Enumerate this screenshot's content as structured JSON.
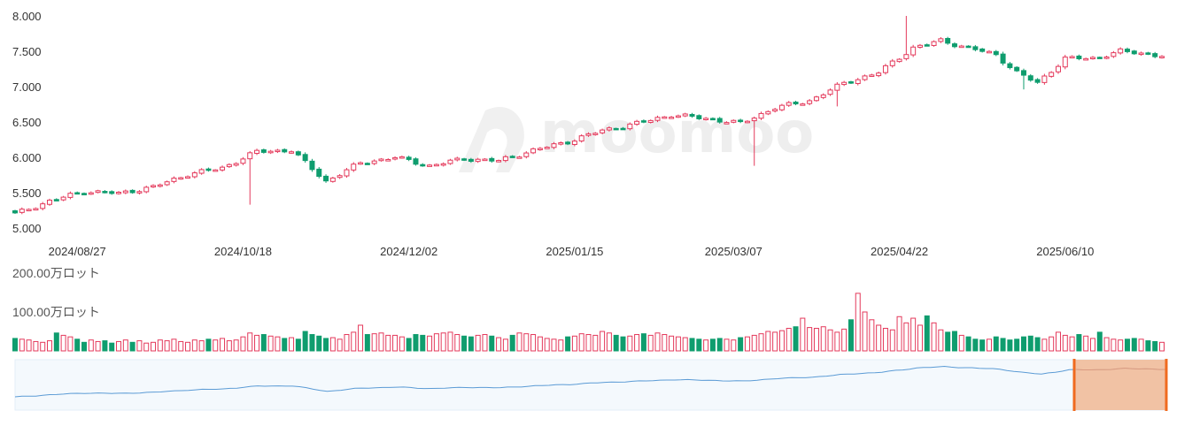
{
  "chart_data": [
    {
      "type": "candlestick",
      "y_ticks": [
        "8.000",
        "7.500",
        "7.000",
        "6.500",
        "6.000",
        "5.500",
        "5.000"
      ],
      "y_tick_values": [
        8000,
        7500,
        7000,
        6500,
        6000,
        5500,
        5000
      ],
      "ylim": [
        5000,
        8000
      ],
      "x_ticks": [
        "2024/08/27",
        "2024/10/18",
        "2024/12/02",
        "2025/01/15",
        "2025/03/07",
        "2025/04/22",
        "2025/06/10"
      ],
      "x_tick_positions": [
        9,
        33,
        57,
        81,
        104,
        128,
        152
      ],
      "up_color": "#e4395b",
      "down_color": "#0f9d6e",
      "watermark": "moomoo",
      "grid": false,
      "anchors": [
        [
          0,
          5200
        ],
        [
          5,
          5380
        ],
        [
          10,
          5520
        ],
        [
          15,
          5490
        ],
        [
          20,
          5580
        ],
        [
          25,
          5760
        ],
        [
          30,
          5850
        ],
        [
          35,
          6080
        ],
        [
          40,
          6100
        ],
        [
          45,
          5660
        ],
        [
          50,
          5920
        ],
        [
          55,
          6000
        ],
        [
          60,
          5880
        ],
        [
          65,
          5980
        ],
        [
          70,
          5950
        ],
        [
          75,
          6100
        ],
        [
          80,
          6220
        ],
        [
          85,
          6380
        ],
        [
          90,
          6480
        ],
        [
          95,
          6600
        ],
        [
          100,
          6550
        ],
        [
          105,
          6480
        ],
        [
          110,
          6700
        ],
        [
          115,
          6800
        ],
        [
          120,
          7050
        ],
        [
          125,
          7200
        ],
        [
          130,
          7550
        ],
        [
          134,
          7650
        ],
        [
          138,
          7550
        ],
        [
          142,
          7450
        ],
        [
          145,
          7200
        ],
        [
          148,
          7050
        ],
        [
          152,
          7400
        ],
        [
          156,
          7400
        ],
        [
          160,
          7500
        ],
        [
          165,
          7450
        ],
        [
          170,
          7380
        ],
        [
          173,
          7370
        ]
      ]
    },
    {
      "type": "bar",
      "y_ticks": [
        "200.00万ロット",
        "100.00万ロット"
      ],
      "y_tick_values": [
        200,
        100
      ],
      "ylim": [
        0,
        200
      ],
      "unit": "万ロット",
      "values": [
        32,
        30,
        28,
        24,
        22,
        26,
        46,
        40,
        36,
        30,
        22,
        28,
        24,
        26,
        20,
        24,
        28,
        22,
        26,
        20,
        22,
        28,
        26,
        30,
        24,
        22,
        28,
        26,
        30,
        28,
        32,
        26,
        28,
        36,
        46,
        40,
        42,
        38,
        36,
        32,
        34,
        30,
        50,
        42,
        38,
        32,
        34,
        30,
        42,
        48,
        66,
        42,
        44,
        46,
        40,
        40,
        36,
        32,
        42,
        40,
        38,
        44,
        46,
        48,
        42,
        38,
        36,
        40,
        42,
        38,
        34,
        30,
        40,
        46,
        44,
        42,
        36,
        32,
        30,
        28,
        36,
        38,
        44,
        42,
        40,
        50,
        46,
        40,
        36,
        38,
        42,
        44,
        40,
        46,
        42,
        38,
        36,
        34,
        32,
        30,
        28,
        30,
        32,
        30,
        28,
        34,
        36,
        40,
        44,
        50,
        48,
        52,
        58,
        62,
        84,
        60,
        58,
        62,
        54,
        48,
        56,
        80,
        148,
        100,
        80,
        66,
        58,
        54,
        88,
        72,
        84,
        66,
        90,
        72,
        54,
        48,
        50,
        40,
        36,
        30,
        28,
        30,
        36,
        32,
        28,
        30,
        36,
        38,
        34,
        30,
        36,
        48,
        40,
        36,
        42,
        38,
        32,
        48,
        34,
        30,
        28,
        30,
        32,
        30,
        26,
        24,
        22
      ]
    },
    {
      "type": "area",
      "role": "navigator",
      "window_start": 0.92,
      "window_end": 1.0,
      "line_color": "#5b9bd5",
      "fill_color": "#f4f9fd",
      "window_color": "#f0b894",
      "handle_color": "#f06a1e"
    }
  ]
}
